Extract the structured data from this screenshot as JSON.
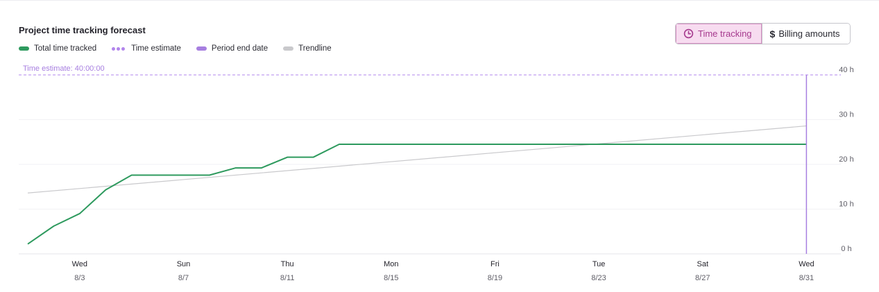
{
  "colors": {
    "total": "#2e9a5e",
    "estimate": "#b285ec",
    "period_end": "#a77fe0",
    "trend": "#c9c9cc",
    "active_bg": "#f7dcf0",
    "active_text": "#a63a8e"
  },
  "legend": {
    "total": "Total time tracked",
    "estimate": "Time estimate",
    "period_end": "Period end date",
    "trend": "Trendline"
  },
  "toggle": {
    "time_tracking": "Time tracking",
    "billing": "Billing amounts",
    "active": "time_tracking",
    "time_icon": "clock-icon",
    "billing_icon": "dollar-icon"
  },
  "chart_data": {
    "type": "line",
    "title": "Project time tracking forecast",
    "xlabel": "",
    "ylabel": "",
    "x_start": "2023-07-31",
    "x_end": "2023-08-31",
    "x_ticks": [
      {
        "day": "Wed",
        "date": "8/3",
        "x": "2023-08-03"
      },
      {
        "day": "Sun",
        "date": "8/7",
        "x": "2023-08-07"
      },
      {
        "day": "Thu",
        "date": "8/11",
        "x": "2023-08-11"
      },
      {
        "day": "Mon",
        "date": "8/15",
        "x": "2023-08-15"
      },
      {
        "day": "Fri",
        "date": "8/19",
        "x": "2023-08-19"
      },
      {
        "day": "Tue",
        "date": "8/23",
        "x": "2023-08-23"
      },
      {
        "day": "Sat",
        "date": "8/27",
        "x": "2023-08-27"
      },
      {
        "day": "Wed",
        "date": "8/31",
        "x": "2023-08-31"
      }
    ],
    "ylim": [
      0,
      40
    ],
    "y_ticks": [
      {
        "value": 0,
        "label": "0 h"
      },
      {
        "value": 10,
        "label": "10 h"
      },
      {
        "value": 20,
        "label": "20 h"
      },
      {
        "value": 30,
        "label": "30 h"
      },
      {
        "value": 40,
        "label": "40 h"
      }
    ],
    "grid": true,
    "legend_position": "top-left",
    "series": [
      {
        "name": "Total time tracked",
        "points": [
          {
            "x": "2023-08-01",
            "y": 2.2
          },
          {
            "x": "2023-08-02",
            "y": 6.2
          },
          {
            "x": "2023-08-03",
            "y": 9.0
          },
          {
            "x": "2023-08-04",
            "y": 14.3
          },
          {
            "x": "2023-08-05",
            "y": 17.6
          },
          {
            "x": "2023-08-06",
            "y": 17.6
          },
          {
            "x": "2023-08-07",
            "y": 17.6
          },
          {
            "x": "2023-08-08",
            "y": 17.6
          },
          {
            "x": "2023-08-09",
            "y": 19.2
          },
          {
            "x": "2023-08-10",
            "y": 19.2
          },
          {
            "x": "2023-08-11",
            "y": 21.6
          },
          {
            "x": "2023-08-12",
            "y": 21.6
          },
          {
            "x": "2023-08-13",
            "y": 24.5
          },
          {
            "x": "2023-08-31",
            "y": 24.5
          }
        ]
      },
      {
        "name": "Trendline",
        "points": [
          {
            "x": "2023-08-01",
            "y": 13.6
          },
          {
            "x": "2023-08-31",
            "y": 28.6
          }
        ]
      }
    ],
    "time_estimate": {
      "label": "Time estimate: 40:00:00",
      "value": 40
    },
    "period_end_date": "2023-08-31"
  }
}
